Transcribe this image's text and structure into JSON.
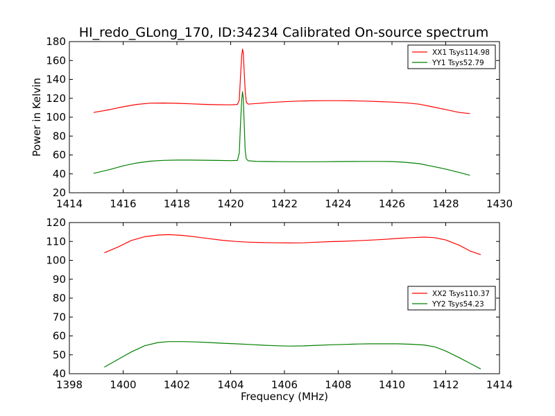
{
  "figure": {
    "title": "HI_redo_GLong_170, ID:34234 Calibrated On-source spectrum"
  },
  "colors": {
    "xx": "#ff0000",
    "yy": "#008000",
    "axes": "#000000"
  },
  "chart_data": [
    {
      "type": "line",
      "title": "HI_redo_GLong_170, ID:34234 Calibrated On-source spectrum",
      "xlabel": "",
      "ylabel": "Power in Kelvin",
      "xlim": [
        1414,
        1430
      ],
      "ylim": [
        20,
        180
      ],
      "xticks": [
        1414,
        1416,
        1418,
        1420,
        1422,
        1424,
        1426,
        1428,
        1430
      ],
      "yticks": [
        20,
        40,
        60,
        80,
        100,
        120,
        140,
        160,
        180
      ],
      "grid": false,
      "legend_position": "top-right",
      "series": [
        {
          "name": "XX1 Tsys114.98",
          "color": "#ff0000",
          "x": [
            1414.9,
            1415.5,
            1416.0,
            1416.5,
            1417.0,
            1417.5,
            1418.0,
            1418.5,
            1419.0,
            1419.5,
            1420.0,
            1420.25,
            1420.32,
            1420.37,
            1420.41,
            1420.44,
            1420.47,
            1420.5,
            1420.54,
            1420.58,
            1420.65,
            1421.0,
            1421.5,
            1422.0,
            1422.5,
            1423.0,
            1423.5,
            1424.0,
            1424.5,
            1425.0,
            1425.5,
            1426.0,
            1426.5,
            1427.0,
            1427.5,
            1428.0,
            1428.5,
            1428.9
          ],
          "y": [
            105,
            108,
            111,
            113.5,
            114.8,
            115,
            114.7,
            114.2,
            113.6,
            113.2,
            113.1,
            113.5,
            118,
            145,
            165,
            172,
            168,
            150,
            128,
            116,
            113.8,
            114.5,
            115.6,
            116.4,
            117,
            117.3,
            117.5,
            117.5,
            117.3,
            117,
            116.5,
            116,
            115.2,
            113.8,
            111,
            108,
            105,
            103.8
          ]
        },
        {
          "name": "YY1 Tsys52.79",
          "color": "#008000",
          "x": [
            1414.9,
            1415.5,
            1416.0,
            1416.5,
            1417.0,
            1417.5,
            1418.0,
            1418.5,
            1419.0,
            1419.5,
            1420.0,
            1420.25,
            1420.32,
            1420.37,
            1420.41,
            1420.44,
            1420.47,
            1420.5,
            1420.54,
            1420.58,
            1420.65,
            1421.0,
            1421.5,
            1422.0,
            1422.5,
            1423.0,
            1423.5,
            1424.0,
            1424.5,
            1425.0,
            1425.5,
            1426.0,
            1426.5,
            1427.0,
            1427.5,
            1428.0,
            1428.5,
            1428.9
          ],
          "y": [
            40.5,
            44.5,
            48.5,
            51.5,
            53.4,
            54.3,
            54.6,
            54.6,
            54.4,
            54.2,
            54,
            54.2,
            62,
            95,
            118,
            127,
            120,
            95,
            65,
            56,
            53.8,
            53.2,
            53,
            52.9,
            52.8,
            52.8,
            52.9,
            53,
            53.1,
            53.2,
            53.2,
            53,
            52.2,
            50.8,
            48,
            45,
            41.5,
            38.5
          ]
        }
      ]
    },
    {
      "type": "line",
      "title": "",
      "xlabel": "Frequency (MHz)",
      "ylabel": "",
      "xlim": [
        1398,
        1414
      ],
      "ylim": [
        40,
        120
      ],
      "xticks": [
        1398,
        1400,
        1402,
        1404,
        1406,
        1408,
        1410,
        1412,
        1414
      ],
      "yticks": [
        40,
        50,
        60,
        70,
        80,
        90,
        100,
        110,
        120
      ],
      "grid": false,
      "legend_position": "center-right",
      "series": [
        {
          "name": "XX2 Tsys110.37",
          "color": "#ff0000",
          "x": [
            1399.3,
            1399.8,
            1400.3,
            1400.8,
            1401.3,
            1401.7,
            1402.2,
            1402.7,
            1403.2,
            1403.7,
            1404.2,
            1404.7,
            1405.2,
            1405.7,
            1406.2,
            1406.7,
            1407.2,
            1407.7,
            1408.2,
            1408.7,
            1409.2,
            1409.7,
            1410.2,
            1410.7,
            1411.2,
            1411.6,
            1412.0,
            1412.5,
            1412.9,
            1413.3
          ],
          "y": [
            104,
            107,
            110.5,
            112.5,
            113.4,
            113.6,
            113.2,
            112.4,
            111.5,
            110.6,
            110,
            109.6,
            109.4,
            109.3,
            109.2,
            109.3,
            109.6,
            109.9,
            110.1,
            110.4,
            110.7,
            111.1,
            111.6,
            112,
            112.3,
            112,
            110.8,
            108,
            105,
            103
          ]
        },
        {
          "name": "YY2 Tsys54.23",
          "color": "#008000",
          "x": [
            1399.3,
            1399.8,
            1400.3,
            1400.8,
            1401.3,
            1401.7,
            1402.2,
            1402.7,
            1403.2,
            1403.7,
            1404.2,
            1404.7,
            1405.2,
            1405.7,
            1406.2,
            1406.7,
            1407.2,
            1407.7,
            1408.2,
            1408.7,
            1409.2,
            1409.7,
            1410.2,
            1410.7,
            1411.2,
            1411.6,
            1412.0,
            1412.5,
            1412.9,
            1413.3
          ],
          "y": [
            43.5,
            47.5,
            51.5,
            54.8,
            56.5,
            57,
            57,
            56.8,
            56.5,
            56.1,
            55.8,
            55.5,
            55.1,
            54.8,
            54.6,
            54.7,
            55,
            55.3,
            55.5,
            55.7,
            55.8,
            55.8,
            55.8,
            55.6,
            55.2,
            54.2,
            52,
            48.5,
            45.5,
            42.5
          ]
        }
      ]
    }
  ]
}
